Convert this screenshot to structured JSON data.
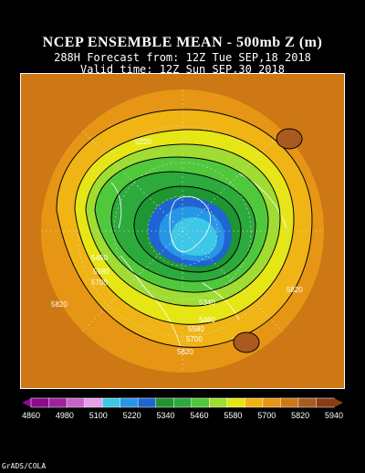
{
  "header": {
    "title": "NCEP ENSEMBLE MEAN - 500mb Z (m)",
    "forecast": "288H Forecast from: 12Z Tue SEP,18 2018",
    "valid": "Valid time: 12Z Sun SEP,30 2018"
  },
  "map": {
    "contour_labels": [
      "5220",
      "5340",
      "5460",
      "5580",
      "5700",
      "5820"
    ]
  },
  "colorbar": {
    "ticks": [
      "4860",
      "4980",
      "5100",
      "5220",
      "5340",
      "5460",
      "5580",
      "5700",
      "5820",
      "5940"
    ],
    "colors": [
      "#8c0a8c",
      "#a020a0",
      "#c864c8",
      "#e6a0e6",
      "#3cc8e6",
      "#2896e6",
      "#1e64d2",
      "#1e9632",
      "#2daa3c",
      "#50c83c",
      "#a0dc32",
      "#e6e614",
      "#f0b414",
      "#e69614",
      "#cd7814",
      "#aa5a1e",
      "#8c3c14",
      "#fff"
    ]
  },
  "credit": "GrADS/COLA"
}
